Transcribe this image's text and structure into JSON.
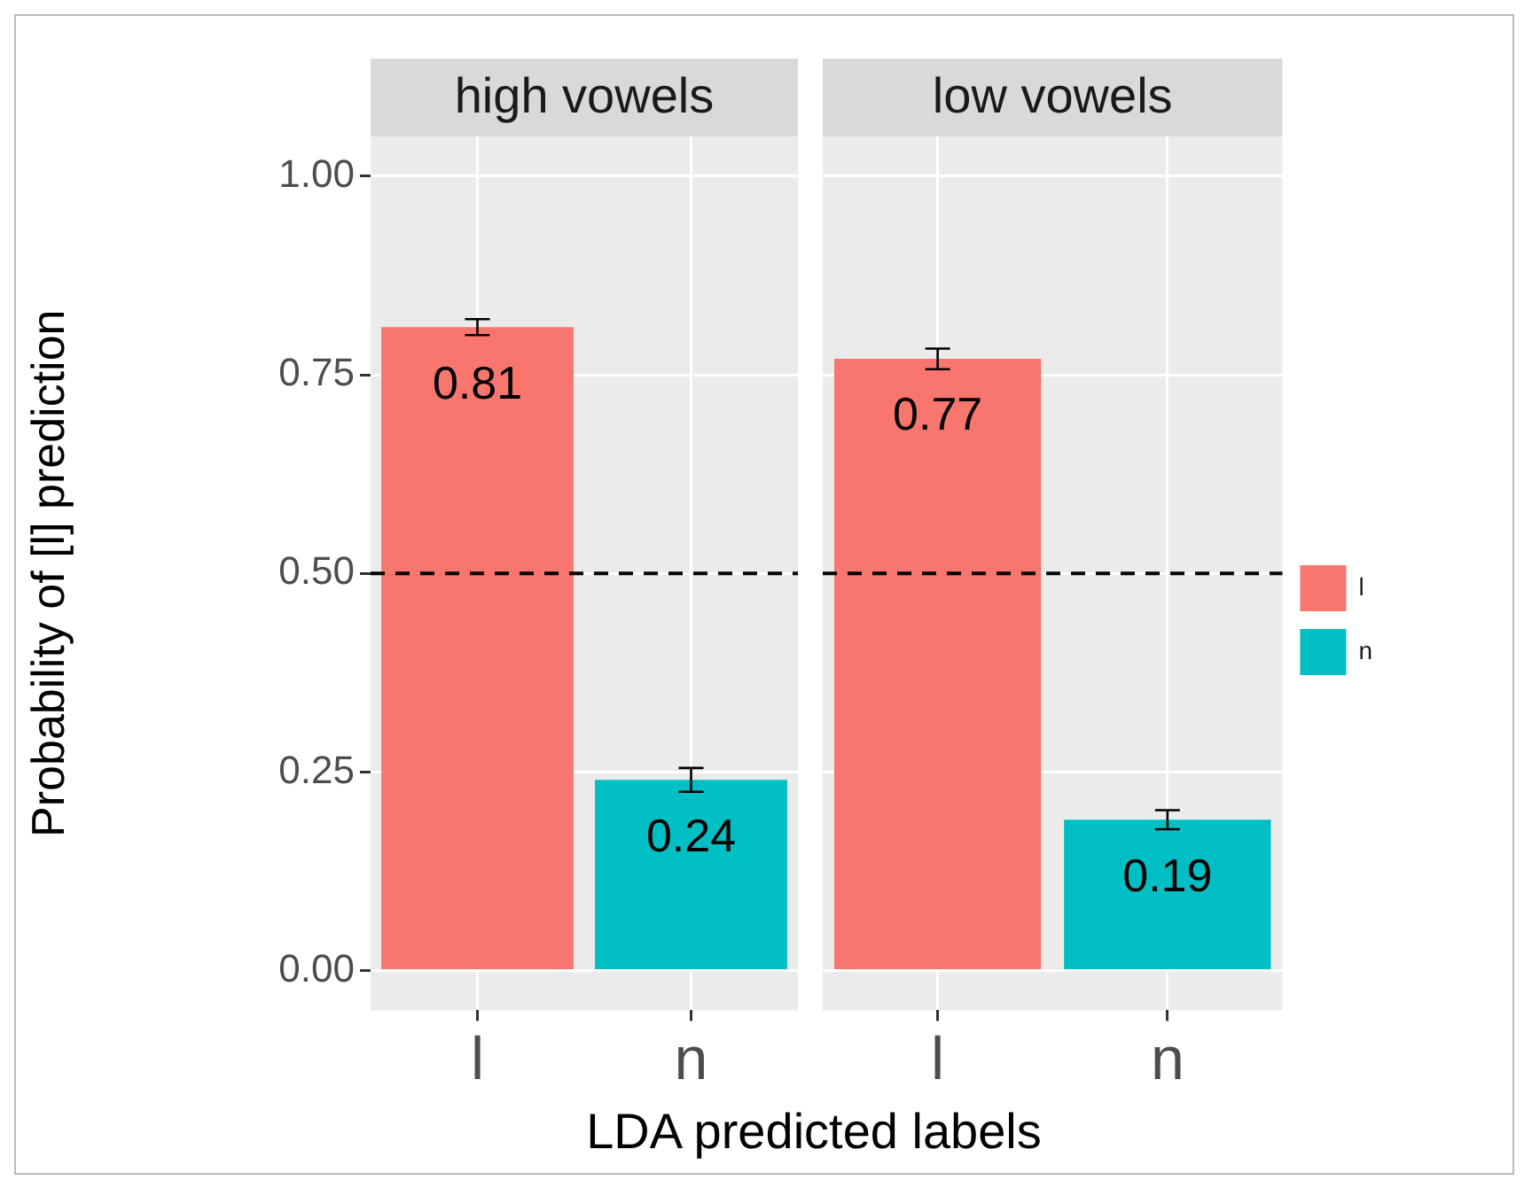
{
  "chart_data": [
    {
      "type": "bar",
      "title": "high vowels",
      "xlabel": "LDA predicted labels",
      "ylabel": "Probability of [l] prediction",
      "categories": [
        "l",
        "n"
      ],
      "stacked": true,
      "series": [
        {
          "color": "#f8766d",
          "values": [
            0.81,
            null
          ],
          "errors": [
            0.01,
            null
          ]
        },
        {
          "color": "#00bfc4",
          "values": [
            null,
            0.24
          ],
          "errors": [
            null,
            0.015
          ]
        }
      ],
      "data_labels": true,
      "ylim": [
        -0.05,
        1.05
      ],
      "yticks": [
        {
          "value": 0,
          "label": "0.00"
        },
        {
          "value": 0.25,
          "label": "0.25"
        },
        {
          "value": 0.5,
          "label": "0.50"
        },
        {
          "value": 0.75,
          "label": "0.75"
        },
        {
          "value": 1,
          "label": "1.00"
        }
      ],
      "grid": true,
      "ref_lines": [
        {
          "axis": "y",
          "value": 0.5,
          "line_style": "dashed",
          "color": "#000000"
        }
      ]
    },
    {
      "type": "bar",
      "title": "low vowels",
      "categories": [
        "l",
        "n"
      ],
      "stacked": true,
      "series": [
        {
          "name": "l",
          "color": "#f8766d",
          "values": [
            0.77,
            null
          ],
          "errors": [
            0.013,
            null
          ]
        },
        {
          "name": "n",
          "color": "#00bfc4",
          "values": [
            null,
            0.19
          ],
          "errors": [
            null,
            0.012
          ]
        }
      ],
      "data_labels": true,
      "ylim": [
        -0.05,
        1.05
      ],
      "yticks": [
        0,
        0.25,
        0.5,
        0.75,
        1
      ],
      "tick_labels": "x",
      "grid": true,
      "legend": "right",
      "ref_lines": [
        {
          "axis": "y",
          "value": 0.5,
          "line_style": "dashed",
          "color": "#000000"
        }
      ]
    }
  ]
}
